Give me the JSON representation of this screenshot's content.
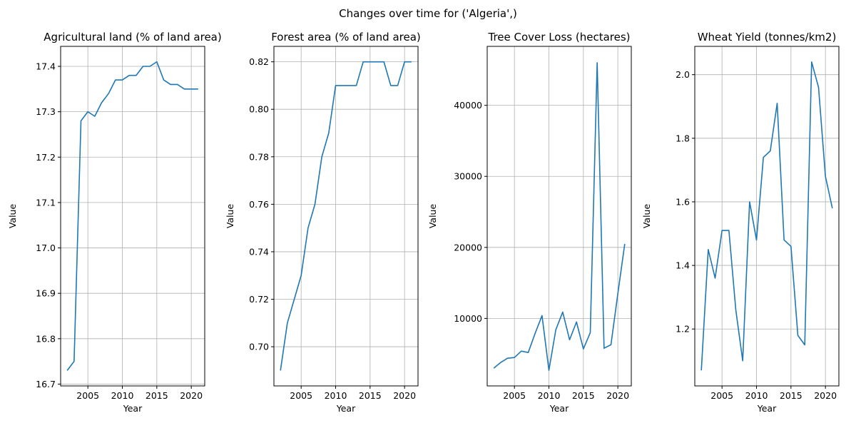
{
  "figure": {
    "suptitle": "Changes over time for ('Algeria',)"
  },
  "colors": {
    "line": "#1f77b4",
    "grid": "#b0b0b0",
    "axis": "#000000"
  },
  "chart_data": [
    {
      "type": "line",
      "title": "Agricultural land (% of land area)",
      "xlabel": "Year",
      "ylabel": "Value",
      "grid": true,
      "xlim": [
        2001.05,
        2021.95
      ],
      "ylim": [
        16.696,
        16.744
      ],
      "ylim_real": [
        16.696,
        17.444
      ],
      "xticks": [
        2005,
        2010,
        2015,
        2020
      ],
      "yticks": [
        16.7,
        16.8,
        16.9,
        17.0,
        17.1,
        17.2,
        17.3,
        17.4
      ],
      "ytick_labels": [
        "16.7",
        "16.8",
        "16.9",
        "17.0",
        "17.1",
        "17.2",
        "17.3",
        "17.4"
      ],
      "x": [
        2002,
        2003,
        2004,
        2005,
        2006,
        2007,
        2008,
        2009,
        2010,
        2011,
        2012,
        2013,
        2014,
        2015,
        2016,
        2017,
        2018,
        2019,
        2020,
        2021
      ],
      "y": [
        16.73,
        16.75,
        17.28,
        17.3,
        17.29,
        17.32,
        17.34,
        17.37,
        17.37,
        17.38,
        17.38,
        17.4,
        17.4,
        17.41,
        17.37,
        17.36,
        17.36,
        17.35,
        17.35,
        17.35
      ]
    },
    {
      "type": "line",
      "title": "Forest area (% of land area)",
      "xlabel": "Year",
      "ylabel": "Value",
      "grid": true,
      "xlim": [
        2001.05,
        2021.95
      ],
      "ylim_real": [
        0.6835,
        0.8265
      ],
      "xticks": [
        2005,
        2010,
        2015,
        2020
      ],
      "yticks": [
        0.7,
        0.72,
        0.74,
        0.76,
        0.78,
        0.8,
        0.82
      ],
      "ytick_labels": [
        "0.70",
        "0.72",
        "0.74",
        "0.76",
        "0.78",
        "0.80",
        "0.82"
      ],
      "x": [
        2002,
        2003,
        2004,
        2005,
        2006,
        2007,
        2008,
        2009,
        2010,
        2011,
        2012,
        2013,
        2014,
        2015,
        2016,
        2017,
        2018,
        2019,
        2020,
        2021
      ],
      "y": [
        0.69,
        0.71,
        0.72,
        0.73,
        0.75,
        0.76,
        0.78,
        0.79,
        0.81,
        0.81,
        0.81,
        0.81,
        0.82,
        0.82,
        0.82,
        0.82,
        0.81,
        0.81,
        0.82,
        0.82
      ]
    },
    {
      "type": "line",
      "title": "Tree Cover Loss (hectares)",
      "xlabel": "Year",
      "ylabel": "Value",
      "grid": true,
      "xlim": [
        2001.05,
        2021.95
      ],
      "ylim_real": [
        500,
        48300
      ],
      "xticks": [
        2005,
        2010,
        2015,
        2020
      ],
      "yticks": [
        10000,
        20000,
        30000,
        40000
      ],
      "ytick_labels": [
        "10000",
        "20000",
        "30000",
        "40000"
      ],
      "x": [
        2002,
        2003,
        2004,
        2005,
        2006,
        2007,
        2008,
        2009,
        2010,
        2011,
        2012,
        2013,
        2014,
        2015,
        2016,
        2017,
        2018,
        2019,
        2020,
        2021
      ],
      "y": [
        3000,
        3800,
        4400,
        4500,
        5400,
        5200,
        7900,
        10400,
        2700,
        8400,
        10900,
        7000,
        9500,
        5700,
        8000,
        46000,
        5800,
        6300,
        13500,
        20500
      ]
    },
    {
      "type": "line",
      "title": "Wheat Yield (tonnes/km2)",
      "xlabel": "Year",
      "ylabel": "Value",
      "grid": true,
      "xlim": [
        2001.05,
        2021.95
      ],
      "ylim_real": [
        1.021,
        2.089
      ],
      "xticks": [
        2005,
        2010,
        2015,
        2020
      ],
      "yticks": [
        1.2,
        1.4,
        1.6,
        1.8,
        2.0
      ],
      "ytick_labels": [
        "1.2",
        "1.4",
        "1.6",
        "1.8",
        "2.0"
      ],
      "x": [
        2002,
        2003,
        2004,
        2005,
        2006,
        2007,
        2008,
        2009,
        2010,
        2011,
        2012,
        2013,
        2014,
        2015,
        2016,
        2017,
        2018,
        2019,
        2020,
        2021
      ],
      "y": [
        1.07,
        1.45,
        1.36,
        1.51,
        1.51,
        1.26,
        1.1,
        1.6,
        1.48,
        1.74,
        1.76,
        1.91,
        1.48,
        1.46,
        1.18,
        1.15,
        2.04,
        1.96,
        1.68,
        1.58
      ]
    }
  ]
}
